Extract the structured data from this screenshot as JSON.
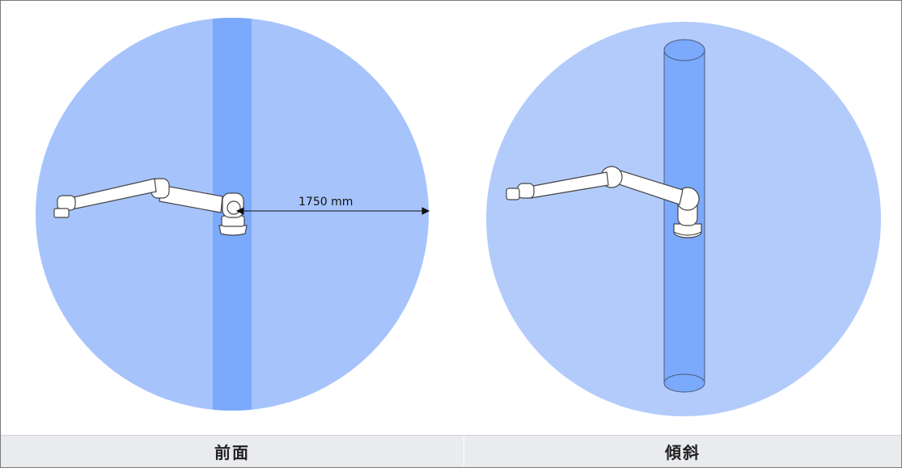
{
  "panels": {
    "front": {
      "caption": "前面",
      "dimension_label": "1750 mm"
    },
    "tilted": {
      "caption": "傾斜"
    }
  },
  "colors": {
    "sphere_light": "#a6c4fb",
    "sphere_light_tilted": "#b2cbfb",
    "column": "#7ba9fc",
    "robot_body": "#ffffff",
    "robot_outline": "#444444",
    "caption_bg": "#e9ebee",
    "frame_border": "#7a7a7a"
  },
  "icons": {
    "front_robot": "robot-arm-side-view-icon",
    "tilted_robot": "robot-arm-tilted-view-icon",
    "dimension_arrow": "double-arrow-icon"
  }
}
